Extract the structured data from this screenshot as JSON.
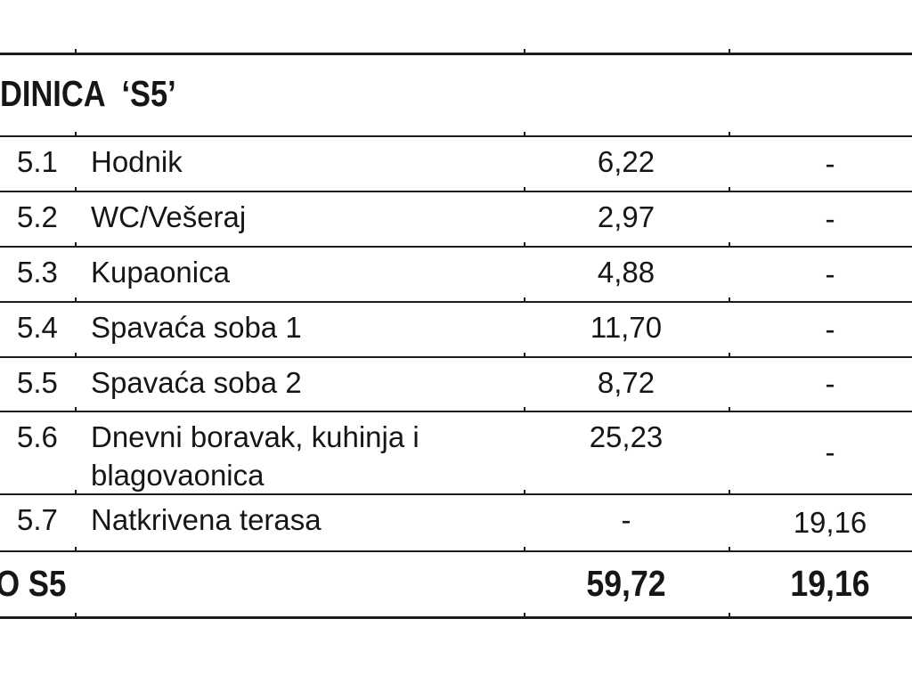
{
  "document": {
    "heading": "DINICA  ‘S5’",
    "rows": [
      {
        "num": "5.1",
        "name": "Hodnik",
        "area": "6,22",
        "terrace": "-"
      },
      {
        "num": "5.2",
        "name": "WC/Vešeraj",
        "area": "2,97",
        "terrace": "-"
      },
      {
        "num": "5.3",
        "name": "Kupaonica",
        "area": "4,88",
        "terrace": "-"
      },
      {
        "num": "5.4",
        "name": "Spavaća soba 1",
        "area": "11,70",
        "terrace": "-"
      },
      {
        "num": "5.5",
        "name": "Spavaća soba 2",
        "area": "8,72",
        "terrace": "-"
      },
      {
        "num": "5.6",
        "name": "Dnevni boravak, kuhinja i\nblagovaonica",
        "area": "25,23",
        "terrace": "-"
      },
      {
        "num": "5.7",
        "name": "Natkrivena terasa",
        "area": "-",
        "terrace": "19,16"
      }
    ],
    "total": {
      "label": "O S5",
      "area": "59,72",
      "terrace": "19,16"
    },
    "line_color": "#1c1c1c"
  }
}
